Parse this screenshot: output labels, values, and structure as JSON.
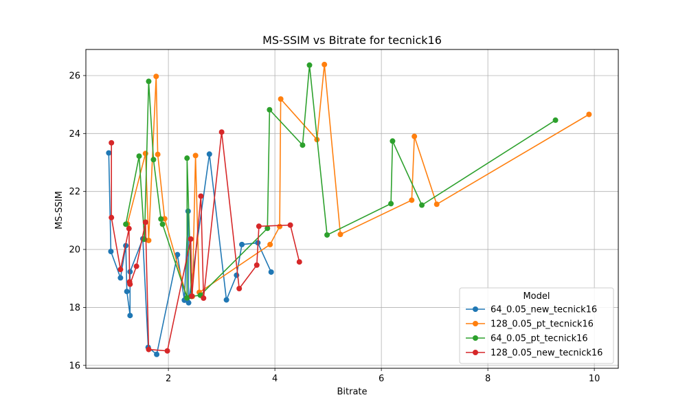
{
  "chart_data": {
    "type": "line",
    "title": "MS-SSIM vs Bitrate for tecnick16",
    "xlabel": "Bitrate",
    "ylabel": "MS-SSIM",
    "xlim": [
      0.45,
      10.45
    ],
    "ylim": [
      15.9,
      26.9
    ],
    "xticks": [
      2,
      4,
      6,
      8,
      10
    ],
    "yticks": [
      16,
      18,
      20,
      22,
      24,
      26
    ],
    "grid": true,
    "legend": {
      "title": "Model",
      "position": "lower right"
    },
    "series": [
      {
        "name": "64_0.05_new_tecnick16",
        "color": "#1f77b4",
        "points": [
          [
            0.88,
            23.33
          ],
          [
            0.92,
            19.93
          ],
          [
            1.1,
            19.02
          ],
          [
            1.2,
            20.13
          ],
          [
            1.22,
            18.55
          ],
          [
            1.28,
            17.72
          ],
          [
            1.28,
            19.23
          ],
          [
            1.52,
            20.37
          ],
          [
            1.62,
            16.62
          ],
          [
            1.78,
            16.38
          ],
          [
            2.17,
            19.82
          ],
          [
            2.3,
            18.25
          ],
          [
            2.37,
            21.32
          ],
          [
            2.38,
            18.16
          ],
          [
            2.77,
            23.29
          ],
          [
            3.09,
            18.26
          ],
          [
            3.28,
            19.11
          ],
          [
            3.38,
            20.17
          ],
          [
            3.68,
            20.23
          ],
          [
            3.93,
            19.22
          ]
        ]
      },
      {
        "name": "128_0.05_pt_tecnick16",
        "color": "#ff7f0e",
        "points": [
          [
            1.23,
            20.88
          ],
          [
            1.57,
            23.31
          ],
          [
            1.63,
            20.31
          ],
          [
            1.77,
            25.97
          ],
          [
            1.8,
            23.28
          ],
          [
            1.93,
            21.06
          ],
          [
            2.35,
            18.33
          ],
          [
            2.45,
            18.38
          ],
          [
            2.51,
            23.24
          ],
          [
            2.58,
            18.52
          ],
          [
            3.91,
            20.17
          ],
          [
            4.09,
            20.79
          ],
          [
            4.11,
            25.19
          ],
          [
            4.79,
            23.79
          ],
          [
            4.93,
            26.38
          ],
          [
            5.23,
            20.52
          ],
          [
            6.57,
            21.7
          ],
          [
            6.62,
            23.9
          ],
          [
            7.04,
            21.56
          ],
          [
            9.9,
            24.66
          ]
        ]
      },
      {
        "name": "64_0.05_pt_tecnick16",
        "color": "#2ca02c",
        "points": [
          [
            1.2,
            20.87
          ],
          [
            1.45,
            23.22
          ],
          [
            1.55,
            20.35
          ],
          [
            1.63,
            25.8
          ],
          [
            1.72,
            23.1
          ],
          [
            1.86,
            21.05
          ],
          [
            1.89,
            20.87
          ],
          [
            2.35,
            18.33
          ],
          [
            2.35,
            23.15
          ],
          [
            2.43,
            18.38
          ],
          [
            2.6,
            18.42
          ],
          [
            3.86,
            20.73
          ],
          [
            3.9,
            24.82
          ],
          [
            4.52,
            23.6
          ],
          [
            4.65,
            26.36
          ],
          [
            4.98,
            20.5
          ],
          [
            6.18,
            21.58
          ],
          [
            6.21,
            23.74
          ],
          [
            6.76,
            21.53
          ],
          [
            9.27,
            24.46
          ]
        ]
      },
      {
        "name": "128_0.05_new_tecnick16",
        "color": "#d62728",
        "points": [
          [
            0.93,
            23.68
          ],
          [
            0.93,
            21.1
          ],
          [
            1.1,
            19.31
          ],
          [
            1.26,
            20.72
          ],
          [
            1.27,
            18.88
          ],
          [
            1.28,
            18.8
          ],
          [
            1.4,
            19.42
          ],
          [
            1.57,
            20.94
          ],
          [
            1.63,
            16.55
          ],
          [
            1.98,
            16.5
          ],
          [
            2.42,
            20.36
          ],
          [
            2.44,
            18.39
          ],
          [
            2.61,
            21.84
          ],
          [
            2.66,
            18.32
          ],
          [
            3.0,
            24.05
          ],
          [
            3.33,
            18.65
          ],
          [
            3.66,
            19.46
          ],
          [
            3.7,
            20.8
          ],
          [
            4.29,
            20.84
          ],
          [
            4.46,
            19.57
          ]
        ]
      }
    ]
  }
}
